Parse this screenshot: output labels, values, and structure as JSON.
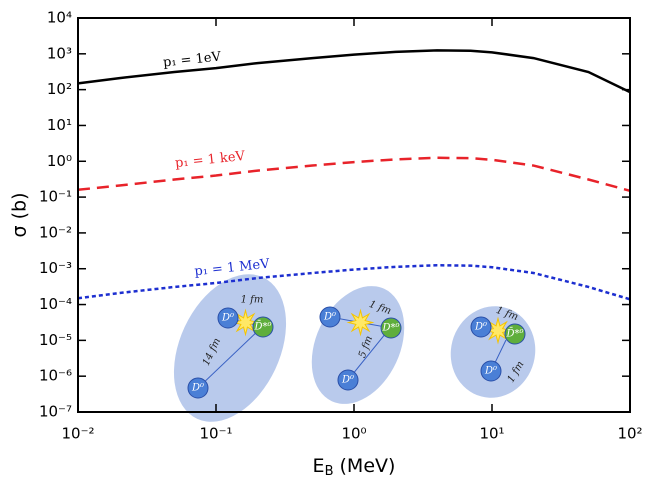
{
  "chart_data": {
    "type": "line",
    "xlabel": [
      "E",
      "B",
      " (MeV)"
    ],
    "ylabel": "σ (b)",
    "xscale": "log",
    "yscale": "log",
    "xlim": [
      0.01,
      100
    ],
    "ylim": [
      1e-07,
      10000
    ],
    "xticks": [
      {
        "value": 0.01,
        "label": "10⁻²"
      },
      {
        "value": 0.1,
        "label": "10⁻¹"
      },
      {
        "value": 1,
        "label": "10⁰"
      },
      {
        "value": 10,
        "label": "10¹"
      },
      {
        "value": 100,
        "label": "10²"
      }
    ],
    "yticks": [
      {
        "value": 1e-07,
        "label": "10⁻⁷"
      },
      {
        "value": 1e-06,
        "label": "10⁻⁶"
      },
      {
        "value": 1e-05,
        "label": "10⁻⁵"
      },
      {
        "value": 0.0001,
        "label": "10⁻⁴"
      },
      {
        "value": 0.001,
        "label": "10⁻³"
      },
      {
        "value": 0.01,
        "label": "10⁻²"
      },
      {
        "value": 0.1,
        "label": "10⁻¹"
      },
      {
        "value": 1,
        "label": "10⁰"
      },
      {
        "value": 10,
        "label": "10¹"
      },
      {
        "value": 100,
        "label": "10²"
      },
      {
        "value": 1000,
        "label": "10³"
      },
      {
        "value": 10000,
        "label": "10⁴"
      }
    ],
    "x": [
      0.01,
      0.02,
      0.05,
      0.1,
      0.2,
      0.5,
      1,
      2,
      4,
      7,
      10,
      20,
      50,
      100
    ],
    "series": [
      {
        "name": "p₁ = 1eV",
        "color": "#000000",
        "dash": "solid",
        "values": [
          150,
          210,
          310,
          400,
          550,
          760,
          950,
          1130,
          1250,
          1220,
          1100,
          760,
          310,
          85
        ]
      },
      {
        "name": "p₁ = 1 keV",
        "color": "#e8232a",
        "dash": "dashed",
        "values": [
          0.16,
          0.21,
          0.31,
          0.4,
          0.55,
          0.76,
          0.95,
          1.13,
          1.25,
          1.22,
          1.1,
          0.76,
          0.31,
          0.15
        ]
      },
      {
        "name": "p₁ = 1 MeV",
        "color": "#1d2fd0",
        "dash": "dotted",
        "values": [
          0.00015,
          0.00021,
          0.00031,
          0.0004,
          0.00055,
          0.00076,
          0.00095,
          0.00113,
          0.00125,
          0.00122,
          0.0011,
          0.00076,
          0.00031,
          0.00014
        ]
      }
    ],
    "insets": [
      {
        "particles": [
          "D⁰",
          "D̄*⁰",
          "D⁰"
        ],
        "distances": [
          "1 fm",
          "14 fm"
        ]
      },
      {
        "particles": [
          "D⁰",
          "D*⁰",
          "D⁰"
        ],
        "distances": [
          "1 fm",
          "5 fm"
        ]
      },
      {
        "particles": [
          "D⁰",
          "D̄*⁰",
          "D⁰"
        ],
        "distances": [
          "1 fm",
          "1 fm"
        ]
      }
    ]
  }
}
